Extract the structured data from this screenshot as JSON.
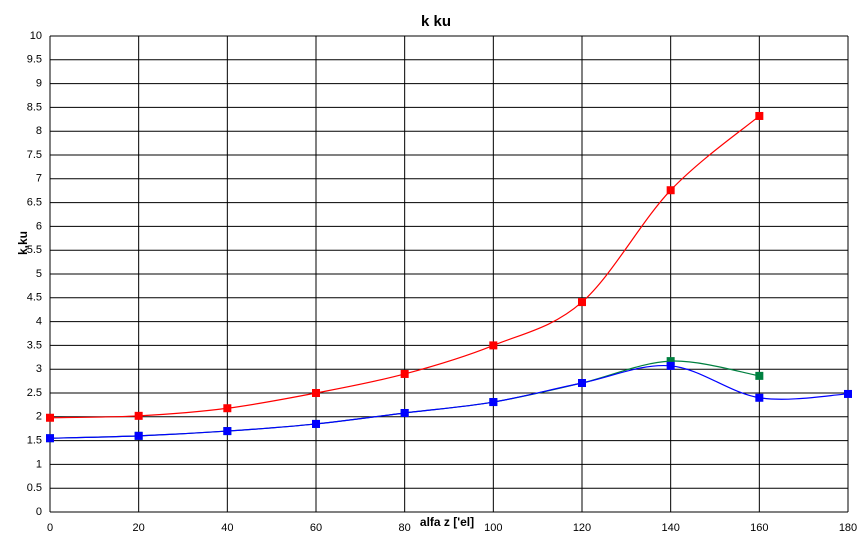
{
  "chart_data": {
    "type": "line",
    "title": "k ku",
    "x_label": "alfa z ['el]",
    "y_label": "k,ku",
    "x": [
      0,
      20,
      40,
      60,
      80,
      100,
      120,
      140,
      160,
      180
    ],
    "series": [
      {
        "color": "#008040",
        "values": [
          1.55,
          1.6,
          1.7,
          1.85,
          2.08,
          2.31,
          2.71,
          3.17,
          2.86,
          null
        ]
      },
      {
        "color": "#ff0000",
        "values": [
          1.98,
          2.02,
          2.18,
          2.5,
          2.9,
          3.5,
          4.41,
          6.76,
          8.32,
          null
        ]
      },
      {
        "color": "#0000ff",
        "values": [
          1.55,
          1.6,
          1.7,
          1.85,
          2.08,
          2.31,
          2.71,
          3.07,
          2.4,
          2.48
        ]
      }
    ],
    "xlim": [
      0,
      180
    ],
    "xticks": [
      0,
      20,
      40,
      60,
      80,
      100,
      120,
      140,
      160,
      180
    ],
    "ylim": [
      0,
      10
    ],
    "yticks": [
      0,
      0.5,
      1,
      1.5,
      2,
      2.5,
      3,
      3.5,
      4,
      4.5,
      5,
      5.5,
      6,
      6.5,
      7,
      7.5,
      8,
      8.5,
      9,
      9.5,
      10
    ],
    "grid": true,
    "smooth": true
  }
}
